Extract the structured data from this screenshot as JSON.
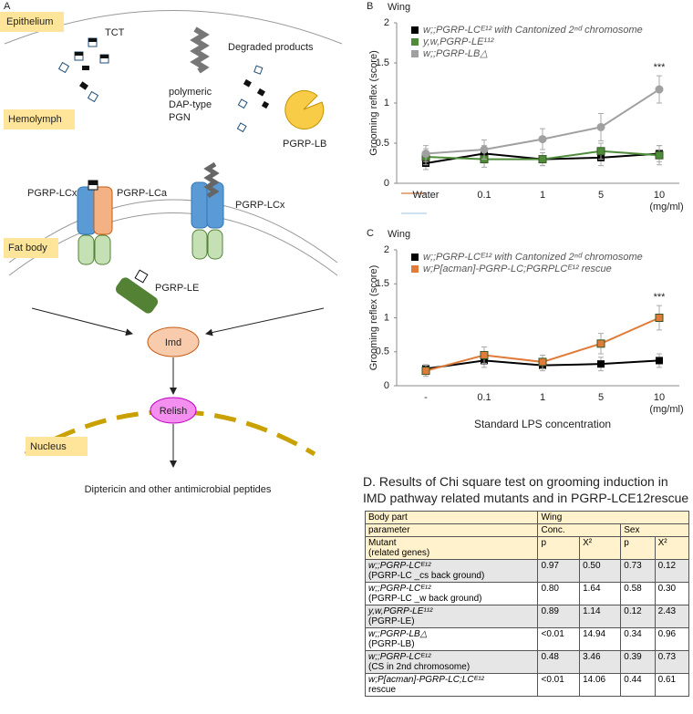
{
  "diagram": {
    "panel": "A",
    "labels": {
      "epithelium": "Epithelium",
      "tct": "TCT",
      "degraded": "Degraded products",
      "pgn": [
        "polymeric",
        "DAP-type",
        "PGN"
      ],
      "hemolymph": "Hemolymph",
      "pgrp_lb": "PGRP-LB",
      "pgrp_lcx_1": "PGRP-LCx",
      "pgrp_lca": "PGRP-LCa",
      "pgrp_lcx_2": "PGRP-LCx",
      "fat_body": "Fat body",
      "pgrp_le": "PGRP-LE",
      "imd": "Imd",
      "relish": "Relish",
      "nucleus": "Nucleus",
      "output": "Diptericin and other antimicrobial peptides"
    }
  },
  "chart_data": [
    {
      "type": "line",
      "panel": "B",
      "subtitle": "Wing",
      "y_label": "Grooming reflex (score)",
      "x_unit": "(mg/ml)",
      "categories": [
        "Water",
        "0.1",
        "1",
        "5",
        "10"
      ],
      "series": [
        {
          "name": "w;;PGRP-LCᴱ¹² with Cantonized 2ⁿᵈ chromosome",
          "color": "#000000",
          "values": [
            0.25,
            0.37,
            0.3,
            0.32,
            0.37
          ],
          "errors": [
            0.08,
            0.1,
            0.08,
            0.1,
            0.1
          ]
        },
        {
          "name": "y,w,PGRP-LE¹¹²",
          "color": "#4e8c3a",
          "values": [
            0.33,
            0.3,
            0.3,
            0.4,
            0.35
          ],
          "errors": [
            0.1,
            0.1,
            0.08,
            0.1,
            0.12
          ]
        },
        {
          "name": "w;;PGRP-LB△",
          "color": "#a0a0a0",
          "values": [
            0.37,
            0.42,
            0.55,
            0.7,
            1.17
          ],
          "errors": [
            0.1,
            0.12,
            0.13,
            0.17,
            0.17
          ]
        }
      ],
      "ylim": [
        0,
        2
      ],
      "yticks": [
        0,
        0.5,
        1,
        1.5,
        2
      ],
      "annotation": "***",
      "legend": "top-left"
    },
    {
      "type": "line",
      "panel": "C",
      "subtitle": "Wing",
      "y_label": "Grooming reflex (score)",
      "x_unit": "(mg/ml)",
      "x_label": "Standard LPS concentration",
      "categories": [
        "-",
        "0.1",
        "1",
        "5",
        "10"
      ],
      "series": [
        {
          "name": "w;;PGRP-LCᴱ¹² with Cantonized 2ⁿᵈ chromosome",
          "color": "#000000",
          "values": [
            0.25,
            0.37,
            0.3,
            0.32,
            0.37
          ],
          "errors": [
            0.06,
            0.1,
            0.08,
            0.1,
            0.1
          ]
        },
        {
          "name": "w;P[acman]-PGRP-LC;PGRPLCᴱ¹² rescue",
          "color": "#e07b39",
          "values": [
            0.22,
            0.45,
            0.35,
            0.62,
            1.0
          ],
          "errors": [
            0.08,
            0.12,
            0.1,
            0.15,
            0.18
          ]
        }
      ],
      "ylim": [
        0,
        2
      ],
      "yticks": [
        0,
        0.5,
        1,
        1.5,
        2
      ],
      "annotation": "***",
      "legend": "top-left"
    }
  ],
  "table": {
    "title": "D. Results of Chi square test on grooming induction in IMD pathway related mutants and in PGRP-LCE12rescue",
    "header": [
      [
        "Body part",
        "Wing"
      ],
      [
        "parameter",
        "Conc.",
        "Sex"
      ],
      [
        [
          "Mutant",
          "(related genes)"
        ],
        "p",
        "X²",
        "p",
        "X²"
      ]
    ],
    "rows": [
      [
        [
          "w;;PGRP-LCᴱ¹²",
          "(PGRP-LC _cs back ground)"
        ],
        "0.97",
        "0.50",
        "0.73",
        "0.12"
      ],
      [
        [
          "w;;PGRP-LCᴱ¹²",
          "(PGRP-LC _w back ground)"
        ],
        "0.80",
        "1.64",
        "0.58",
        "0.30"
      ],
      [
        [
          "y,w,PGRP-LE¹¹²",
          "(PGRP-LE)"
        ],
        "0.89",
        "1.14",
        "0.12",
        "2.43"
      ],
      [
        [
          "w;;PGRP-LB△",
          "(PGRP-LB)"
        ],
        "<0.01",
        "14.94",
        "0.34",
        "0.96"
      ],
      [
        [
          "w;;PGRP-LCᴱ¹²",
          "(CS in 2nd chromosome)"
        ],
        "0.48",
        "3.46",
        "0.39",
        "0.73"
      ],
      [
        [
          "w;P[acman]-PGRP-LC;LCᴱ¹²",
          "rescue"
        ],
        "<0.01",
        "14.06",
        "0.44",
        "0.61"
      ]
    ]
  }
}
